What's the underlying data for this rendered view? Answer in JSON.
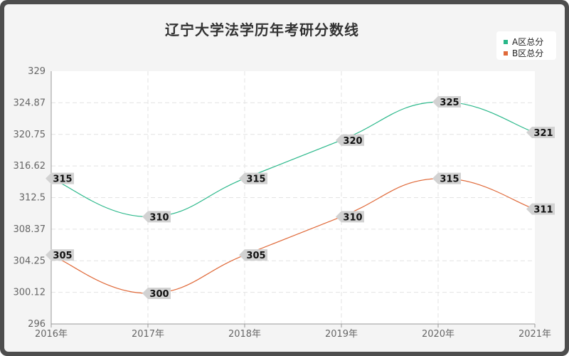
{
  "chart_data": {
    "type": "line",
    "title": "辽宁大学法学历年考研分数线",
    "xlabel": "",
    "ylabel": "",
    "categories": [
      "2016年",
      "2017年",
      "2018年",
      "2019年",
      "2020年",
      "2021年"
    ],
    "ylim": [
      296,
      329
    ],
    "yticks": [
      "329",
      "324.87",
      "320.75",
      "316.62",
      "312.5",
      "308.37",
      "304.25",
      "300.12",
      "296"
    ],
    "grid": true,
    "legend_position": "top-right",
    "series": [
      {
        "name": "A区总分",
        "color": "#2ab88a",
        "values": [
          315,
          310,
          315,
          320,
          325,
          321
        ]
      },
      {
        "name": "B区总分",
        "color": "#e06a3a",
        "values": [
          305,
          300,
          305,
          310,
          315,
          311
        ]
      }
    ]
  }
}
